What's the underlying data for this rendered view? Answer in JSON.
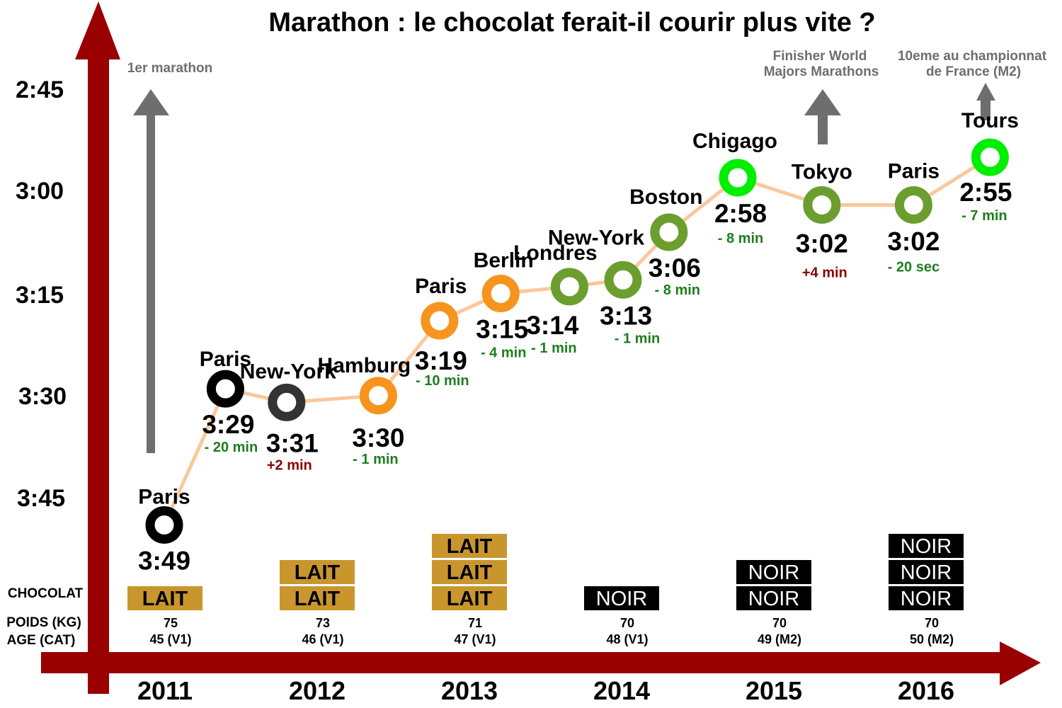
{
  "chart_data": {
    "type": "line",
    "title": "Marathon : le chocolat ferait-il courir plus vite ?",
    "y_ticks": [
      "2:45",
      "3:00",
      "3:15",
      "3:30",
      "3:45"
    ],
    "y_tick_values_min": [
      165,
      180,
      195,
      210,
      225
    ],
    "x_categories": [
      "2011",
      "2012",
      "2013",
      "2014",
      "2015",
      "2016"
    ],
    "row_labels": {
      "chocolat": "CHOCOLAT",
      "poids": "POIDS (KG)",
      "age": "AGE (CAT)"
    },
    "colors": {
      "axis": "#990000",
      "line": "#FAC89A",
      "black": "#000000",
      "darkgray": "#333333",
      "orange": "#F7941D",
      "olive": "#6B9E2E",
      "green": "#00EE00",
      "improve": "#1E7D1E",
      "worse": "#8B0000",
      "lait": "#C9962E",
      "noir": "#000000",
      "arrow": "#6E6E6E"
    },
    "races": [
      {
        "name": "Paris",
        "time": "3:49",
        "minutes": 229,
        "x": 2011.0,
        "delta": "",
        "delta_type": "",
        "color": "black"
      },
      {
        "name": "Paris",
        "time": "3:29",
        "minutes": 209,
        "x": 2011.4,
        "delta": "- 20 min",
        "delta_type": "improve",
        "color": "black"
      },
      {
        "name": "New-York",
        "time": "3:31",
        "minutes": 211,
        "x": 2011.8,
        "delta": "+2 min",
        "delta_type": "worse",
        "color": "darkgray"
      },
      {
        "name": "Hamburg",
        "time": "3:30",
        "minutes": 210,
        "x": 2012.4,
        "delta": "- 1 min",
        "delta_type": "improve",
        "color": "orange"
      },
      {
        "name": "Paris",
        "time": "3:19",
        "minutes": 199,
        "x": 2012.8,
        "delta": "- 10 min",
        "delta_type": "improve",
        "color": "orange"
      },
      {
        "name": "Berlin",
        "time": "3:15",
        "minutes": 195,
        "x": 2013.2,
        "delta": "- 4 min",
        "delta_type": "improve",
        "color": "orange"
      },
      {
        "name": "Londres",
        "time": "3:14",
        "minutes": 194,
        "x": 2013.65,
        "delta": "- 1 min",
        "delta_type": "improve",
        "color": "olive"
      },
      {
        "name": "New-York",
        "time": "3:13",
        "minutes": 193,
        "x": 2014.0,
        "delta": "- 1 min",
        "delta_type": "improve",
        "color": "olive"
      },
      {
        "name": "Boston",
        "time": "3:06",
        "minutes": 186,
        "x": 2014.3,
        "delta": "- 8 min",
        "delta_type": "improve",
        "color": "olive"
      },
      {
        "name": "Chigago",
        "time": "2:58",
        "minutes": 178,
        "x": 2014.75,
        "delta": "- 8 min",
        "delta_type": "improve",
        "color": "green"
      },
      {
        "name": "Tokyo",
        "time": "3:02",
        "minutes": 182,
        "x": 2015.3,
        "delta": "+4 min",
        "delta_type": "worse",
        "color": "olive"
      },
      {
        "name": "Paris",
        "time": "3:02",
        "minutes": 182,
        "x": 2015.9,
        "delta": "- 20 sec",
        "delta_type": "improve",
        "color": "olive"
      },
      {
        "name": "Tours",
        "time": "2:55",
        "minutes": 175,
        "x": 2016.4,
        "delta": "- 7 min",
        "delta_type": "improve",
        "color": "green"
      }
    ],
    "years": [
      {
        "year": "2011",
        "chocolat": [
          "LAIT"
        ],
        "poids": "75",
        "age": "45 (V1)"
      },
      {
        "year": "2012",
        "chocolat": [
          "LAIT",
          "LAIT"
        ],
        "poids": "73",
        "age": "46 (V1)"
      },
      {
        "year": "2013",
        "chocolat": [
          "LAIT",
          "LAIT",
          "LAIT"
        ],
        "poids": "71",
        "age": "47 (V1)"
      },
      {
        "year": "2014",
        "chocolat": [
          "NOIR"
        ],
        "poids": "70",
        "age": "48 (V1)"
      },
      {
        "year": "2015",
        "chocolat": [
          "NOIR",
          "NOIR"
        ],
        "poids": "70",
        "age": "49 (M2)"
      },
      {
        "year": "2016",
        "chocolat": [
          "NOIR",
          "NOIR",
          "NOIR"
        ],
        "poids": "70",
        "age": "50 (M2)"
      }
    ],
    "annotations": [
      {
        "text": [
          "1er marathon"
        ]
      },
      {
        "text": [
          "Finisher World",
          "Majors Marathons"
        ]
      },
      {
        "text": [
          "10eme au championnat",
          "de France (M2)"
        ]
      }
    ]
  }
}
